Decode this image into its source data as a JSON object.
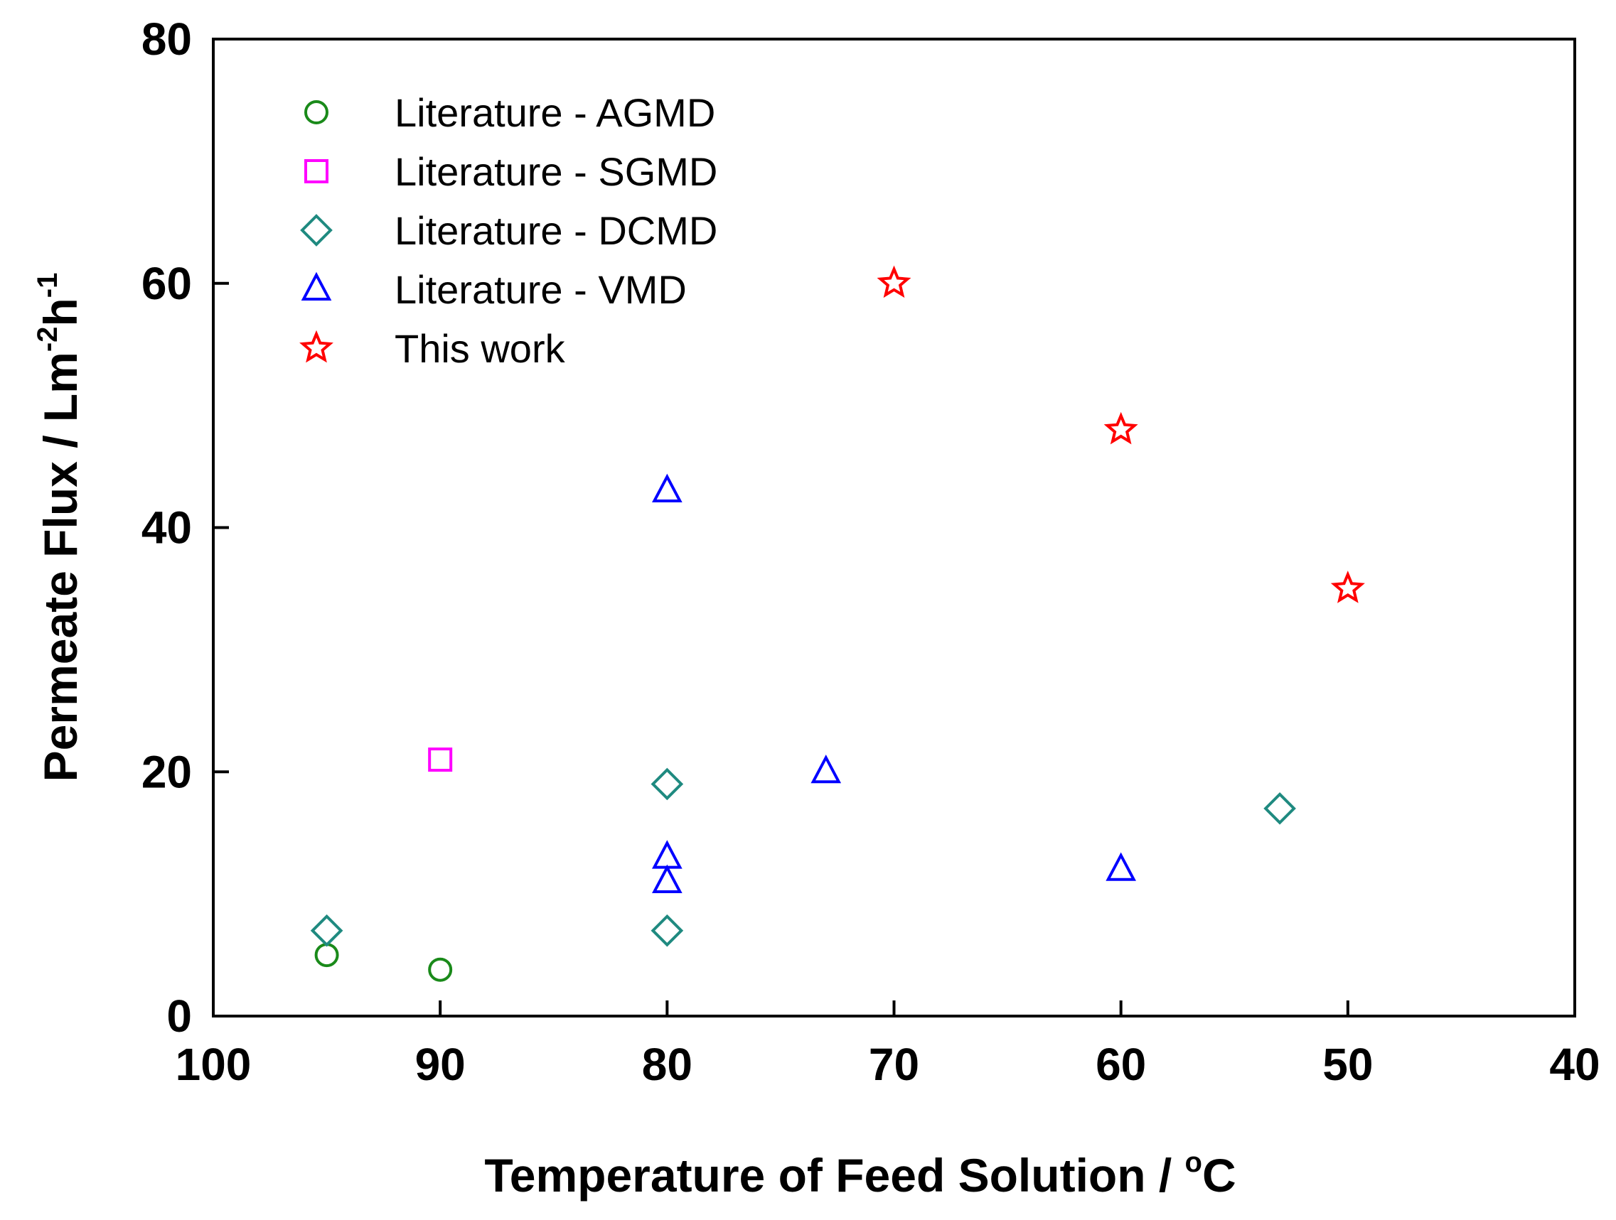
{
  "chart_data": {
    "type": "scatter",
    "xlabel": "Temperature of Feed Solution / °C",
    "xlabel_parts": {
      "main": "Temperature of Feed Solution / ",
      "sup": "o",
      "unit": "C"
    },
    "ylabel": "Permeate Flux / Lm-2h-1",
    "ylabel_parts": {
      "main": "Permeate Flux / Lm",
      "sup1": "-2",
      "mid": "h",
      "sup2": "-1"
    },
    "xlim": [
      100,
      40
    ],
    "ylim": [
      0,
      80
    ],
    "xticks": [
      100,
      90,
      80,
      70,
      60,
      50,
      40
    ],
    "yticks": [
      0,
      20,
      40,
      60,
      80
    ],
    "grid": false,
    "legend_position": "top-left",
    "series": [
      {
        "name": "Literature - AGMD",
        "marker": "circle",
        "color": "#1a8a1a",
        "points": [
          [
            95,
            5
          ],
          [
            90,
            3.8
          ]
        ]
      },
      {
        "name": "Literature - SGMD",
        "marker": "square",
        "color": "#ff00ff",
        "points": [
          [
            90,
            21
          ]
        ]
      },
      {
        "name": "Literature - DCMD",
        "marker": "diamond",
        "color": "#1f8a80",
        "points": [
          [
            95,
            7
          ],
          [
            80,
            19
          ],
          [
            80,
            7
          ],
          [
            53,
            17
          ]
        ]
      },
      {
        "name": "Literature - VMD",
        "marker": "triangle",
        "color": "#0000ff",
        "points": [
          [
            80,
            43
          ],
          [
            80,
            13
          ],
          [
            80,
            11
          ],
          [
            73,
            20
          ],
          [
            60,
            12
          ]
        ]
      },
      {
        "name": "This work",
        "marker": "star",
        "color": "#ff0000",
        "points": [
          [
            70,
            60
          ],
          [
            60,
            48
          ],
          [
            50,
            35
          ]
        ]
      }
    ]
  }
}
